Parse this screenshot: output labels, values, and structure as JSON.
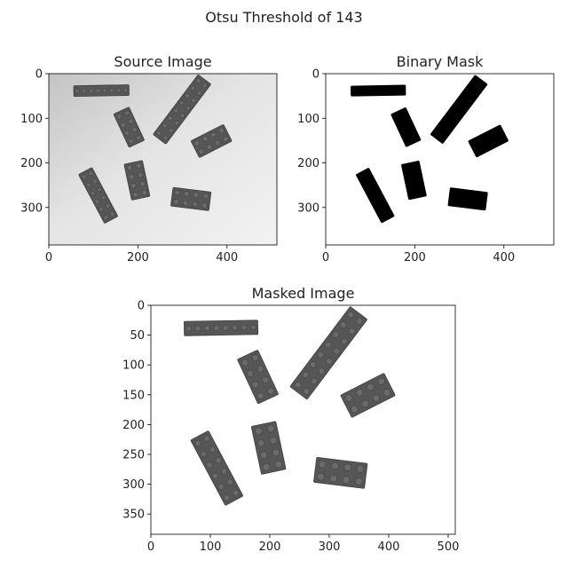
{
  "figure": {
    "suptitle": "Otsu Threshold of 143"
  },
  "panels": [
    {
      "id": "source",
      "title": "Source Image",
      "kind": "source",
      "xticks": [
        0,
        200,
        400
      ],
      "yticks": [
        0,
        100,
        200,
        300
      ],
      "xlim": [
        0,
        512
      ],
      "ylim": [
        0,
        384
      ]
    },
    {
      "id": "mask",
      "title": "Binary Mask",
      "kind": "mask",
      "xticks": [
        0,
        200,
        400
      ],
      "yticks": [
        0,
        100,
        200,
        300
      ],
      "xlim": [
        0,
        512
      ],
      "ylim": [
        0,
        384
      ]
    },
    {
      "id": "masked",
      "title": "Masked Image",
      "kind": "masked",
      "xticks": [
        0,
        100,
        200,
        300,
        400,
        500
      ],
      "yticks": [
        0,
        50,
        100,
        150,
        200,
        250,
        300,
        350
      ],
      "xlim": [
        0,
        512
      ],
      "ylim": [
        0,
        384
      ]
    }
  ],
  "bricks": [
    {
      "cx": 118,
      "cy": 38,
      "w": 124,
      "h": 24,
      "angle": -1,
      "rows": 1,
      "cols": 8
    },
    {
      "cx": 180,
      "cy": 120,
      "w": 38,
      "h": 82,
      "angle": -25,
      "rows": 4,
      "cols": 2
    },
    {
      "cx": 299,
      "cy": 80,
      "w": 36,
      "h": 168,
      "angle": 37,
      "rows": 8,
      "cols": 2
    },
    {
      "cx": 365,
      "cy": 151,
      "w": 82,
      "h": 42,
      "angle": -27,
      "rows": 2,
      "cols": 4
    },
    {
      "cx": 111,
      "cy": 273,
      "w": 34,
      "h": 124,
      "angle": -28,
      "rows": 6,
      "cols": 2
    },
    {
      "cx": 198,
      "cy": 239,
      "w": 42,
      "h": 82,
      "angle": -12,
      "rows": 4,
      "cols": 2
    },
    {
      "cx": 319,
      "cy": 281,
      "w": 86,
      "h": 42,
      "angle": 7,
      "rows": 2,
      "cols": 4
    }
  ],
  "colors": {
    "brick_fill": "#565656",
    "brick_edge": "#3e3e3e",
    "stud": "#6a6a6a",
    "mask_fill": "#000000",
    "masked_bg": "#ffffff"
  }
}
